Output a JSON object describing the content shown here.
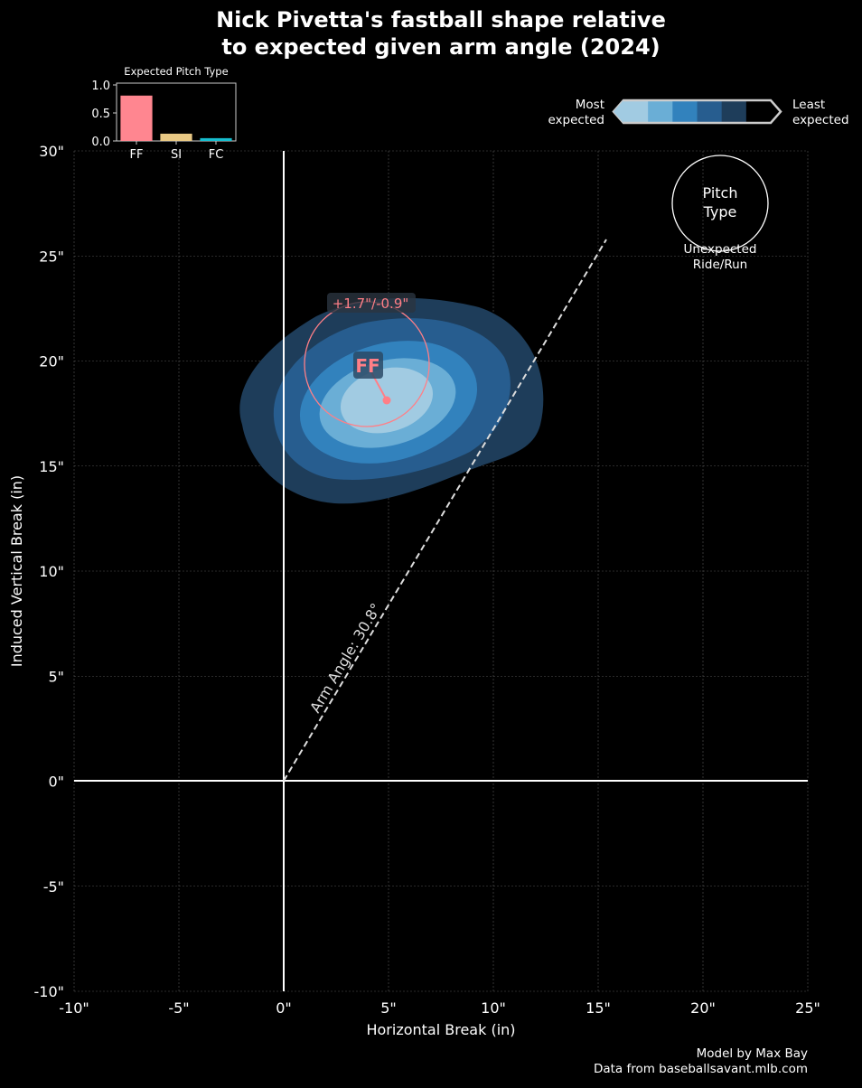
{
  "chart_data": {
    "type": "scatter",
    "title_line1": "Nick Pivetta's fastball shape relative",
    "title_line2": "to expected given arm angle (2024)",
    "xlabel": "Horizontal Break (in)",
    "ylabel": "Induced Vertical Break (in)",
    "xlim": [
      -10,
      25
    ],
    "ylim": [
      -10,
      30
    ],
    "xticks": [
      -10,
      -5,
      0,
      5,
      10,
      15,
      20,
      25
    ],
    "yticks": [
      -10,
      -5,
      0,
      5,
      10,
      15,
      20,
      25,
      30
    ],
    "grid": true,
    "pitch": {
      "label": "FF",
      "x": 4.9,
      "y": 18.1,
      "label_x": 4.0,
      "label_y": 19.8,
      "color": "#ff7f87",
      "diff_label": "+1.7\"/-0.9\""
    },
    "arm_angle": {
      "label": "Arm Angle: 30.8°",
      "degrees": 30.8
    },
    "contour_colors": [
      "#1e3d5a",
      "#275d8f",
      "#3282bd",
      "#6aaed6",
      "#a1cbe2"
    ],
    "inset": {
      "title": "Expected Pitch Type",
      "categories": [
        "FF",
        "SI",
        "FC"
      ],
      "values": [
        0.81,
        0.13,
        0.05
      ],
      "colors": [
        "#ff8690",
        "#e8c884",
        "#17becf"
      ],
      "yticks": [
        "0.0",
        "0.5",
        "1.0"
      ],
      "ylim": [
        0,
        1
      ]
    },
    "colorbar": {
      "left_label_1": "Most",
      "left_label_2": "expected",
      "right_label_1": "Least",
      "right_label_2": "expected",
      "colors": [
        "#a1cbe2",
        "#6aaed6",
        "#3282bd",
        "#275d8f",
        "#1e3d5a",
        "#000000"
      ]
    },
    "key": {
      "circle_1": "Pitch",
      "circle_2": "Type",
      "below_1": "Unexpected",
      "below_2": "Ride/Run"
    },
    "credits": {
      "line1": "Model by Max Bay",
      "line2": "Data from baseballsavant.mlb.com"
    }
  }
}
